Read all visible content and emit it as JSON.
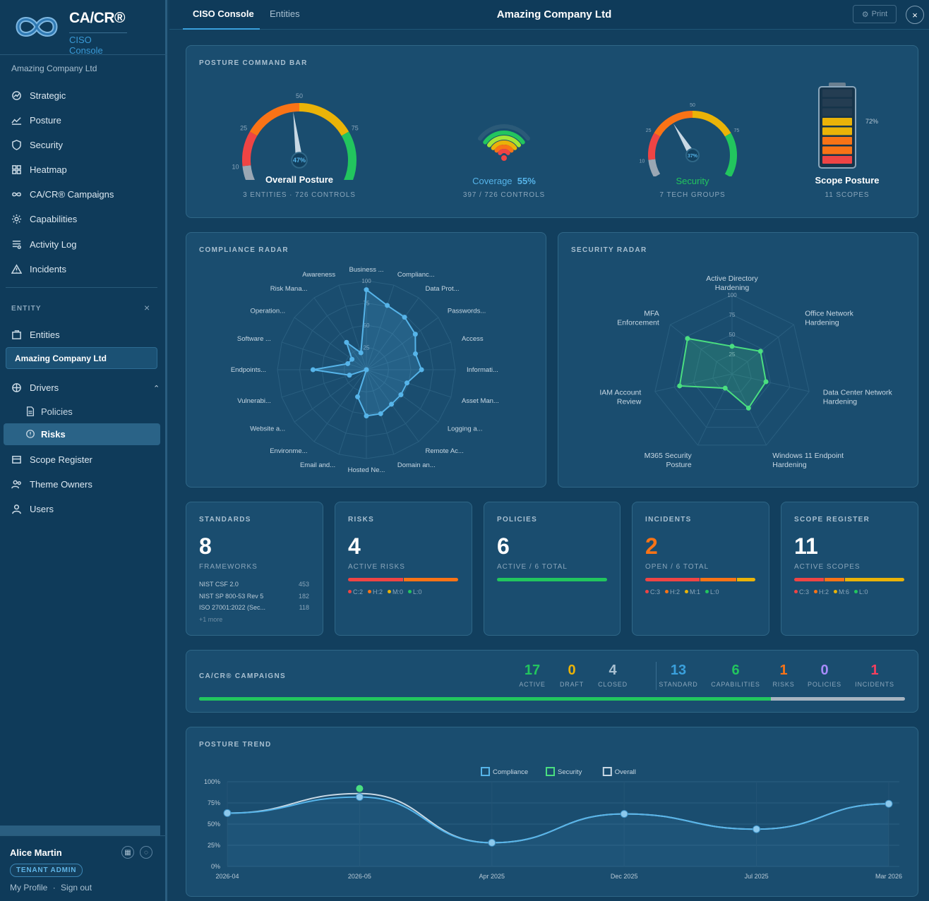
{
  "app": {
    "brand": "CA/CR®",
    "subtitle": "CISO Console",
    "org": "Amazing Company Ltd"
  },
  "nav": {
    "items": [
      "Strategic",
      "Posture",
      "Security",
      "Heatmap",
      "CA/CR® Campaigns",
      "Capabilities",
      "Activity Log",
      "Incidents"
    ]
  },
  "entity": {
    "label": "ENTITY",
    "close": "×",
    "entities": "Entities",
    "selected": "Amazing Company Ltd"
  },
  "drivers": {
    "label": "Drivers",
    "policies": "Policies",
    "risks": "Risks"
  },
  "nav2": {
    "scope": "Scope Register",
    "owners": "Theme Owners",
    "users": "Users"
  },
  "user": {
    "name": "Alice Martin",
    "role": "TENANT ADMIN",
    "profile": "My Profile",
    "sep": "·",
    "signout": "Sign out"
  },
  "topbar": {
    "tabs": [
      "CISO Console",
      "Entities"
    ],
    "title": "Amazing Company Ltd",
    "print": "Print",
    "close": "×"
  },
  "command": {
    "title": "POSTURE COMMAND BAR",
    "overall": {
      "name": "Overall Posture",
      "value": "47%",
      "pct": 47,
      "sub": "3 ENTITIES · 726 CONTROLS",
      "ticks": [
        "10",
        "25",
        "50",
        "75",
        "100"
      ]
    },
    "coverage": {
      "name": "Coverage",
      "value": "55%",
      "sub": "397 / 726 CONTROLS"
    },
    "security": {
      "name": "Security",
      "value": "37%",
      "pct": 37,
      "sub": "7 TECH GROUPS",
      "ticks": [
        "10",
        "25",
        "50",
        "75",
        "100"
      ]
    },
    "scope": {
      "name": "Scope Posture",
      "value": "72%",
      "pct": 72,
      "sub": "11 SCOPES"
    }
  },
  "compliance_radar": {
    "title": "COMPLIANCE RADAR",
    "axes": [
      "Business ...",
      "Complianc...",
      "Data Prot...",
      "Passwords...",
      "Access",
      "Informati...",
      "Asset Man...",
      "Logging a...",
      "Remote Ac...",
      "Domain an...",
      "Hosted Ne...",
      "Email and...",
      "Environme...",
      "Website a...",
      "Vulnerabi...",
      "Endpoints...",
      "Software ...",
      "Operation...",
      "Risk Mana...",
      "Awareness"
    ],
    "values": [
      90,
      76,
      73,
      68,
      58,
      62,
      48,
      48,
      48,
      52,
      52,
      32,
      0,
      0,
      20,
      60,
      22,
      20,
      38,
      20
    ],
    "rings": [
      "25",
      "50",
      "75",
      "100"
    ]
  },
  "security_radar": {
    "title": "SECURITY RADAR",
    "axes": [
      "Active Directory Hardening",
      "Office Network Hardening",
      "Data Center Network Hardening",
      "Windows 11 Endpoint Hardening",
      "M365 Security Posture",
      "IAM Account Review",
      "MFA Enforcement"
    ],
    "values": [
      35,
      46,
      44,
      48,
      20,
      68,
      72
    ],
    "rings": [
      "25",
      "50",
      "75",
      "100"
    ]
  },
  "kpis": {
    "standards": {
      "title": "STANDARDS",
      "value": "8",
      "label": "FRAMEWORKS",
      "items": [
        {
          "name": "NIST CSF 2.0",
          "n": "453"
        },
        {
          "name": "NIST SP 800-53 Rev 5",
          "n": "182"
        },
        {
          "name": "ISO 27001:2022 (Sec...",
          "n": "118"
        }
      ],
      "more": "+1 more"
    },
    "risks": {
      "title": "RISKS",
      "value": "4",
      "label": "ACTIVE RISKS",
      "legend": [
        "C:2",
        "H:2",
        "M:0",
        "L:0"
      ],
      "counts": [
        2,
        2,
        0,
        0
      ]
    },
    "policies": {
      "title": "POLICIES",
      "value": "6",
      "label": "ACTIVE / 6 TOTAL",
      "fraction": 1.0
    },
    "incidents": {
      "title": "INCIDENTS",
      "value": "2",
      "label": "OPEN / 6 TOTAL",
      "legend": [
        "C:3",
        "H:2",
        "M:1",
        "L:0"
      ],
      "counts": [
        3,
        2,
        1,
        0
      ]
    },
    "scope": {
      "title": "SCOPE REGISTER",
      "value": "11",
      "label": "ACTIVE SCOPES",
      "legend": [
        "C:3",
        "H:2",
        "M:6",
        "L:0"
      ],
      "counts": [
        3,
        2,
        6,
        0
      ]
    }
  },
  "campaigns": {
    "title": "CA/CR® CAMPAIGNS",
    "stats": [
      {
        "v": "17",
        "l": "ACTIVE"
      },
      {
        "v": "0",
        "l": "DRAFT"
      },
      {
        "v": "4",
        "l": "CLOSED"
      },
      {
        "v": "13",
        "l": "STANDARD"
      },
      {
        "v": "6",
        "l": "CAPABILITIES"
      },
      {
        "v": "1",
        "l": "RISKS"
      },
      {
        "v": "0",
        "l": "POLICIES"
      },
      {
        "v": "1",
        "l": "INCIDENTS"
      }
    ],
    "active_fraction": 0.81
  },
  "chart_data": {
    "type": "line",
    "title": "POSTURE TREND",
    "categories": [
      "2026-04",
      "2026-05",
      "Apr 2025",
      "Dec 2025",
      "Jul 2025",
      "Mar 2026"
    ],
    "series": [
      {
        "name": "Compliance",
        "values": [
          63,
          82,
          28,
          62,
          44,
          74
        ]
      },
      {
        "name": "Security",
        "values": [
          null,
          92,
          null,
          null,
          null,
          null
        ]
      },
      {
        "name": "Overall",
        "values": [
          63,
          86,
          28,
          62,
          44,
          74
        ]
      }
    ],
    "yticks": [
      "0%",
      "25%",
      "50%",
      "75%",
      "100%"
    ],
    "ylim": [
      0,
      100
    ],
    "legend": "top"
  },
  "colors": {
    "green": "#22c55e",
    "orange": "#f97316",
    "yellow": "#eab308",
    "red": "#ef4444",
    "blue": "#56b4e9",
    "cyan": "#3aa0dc",
    "purple": "#a78bfa"
  }
}
